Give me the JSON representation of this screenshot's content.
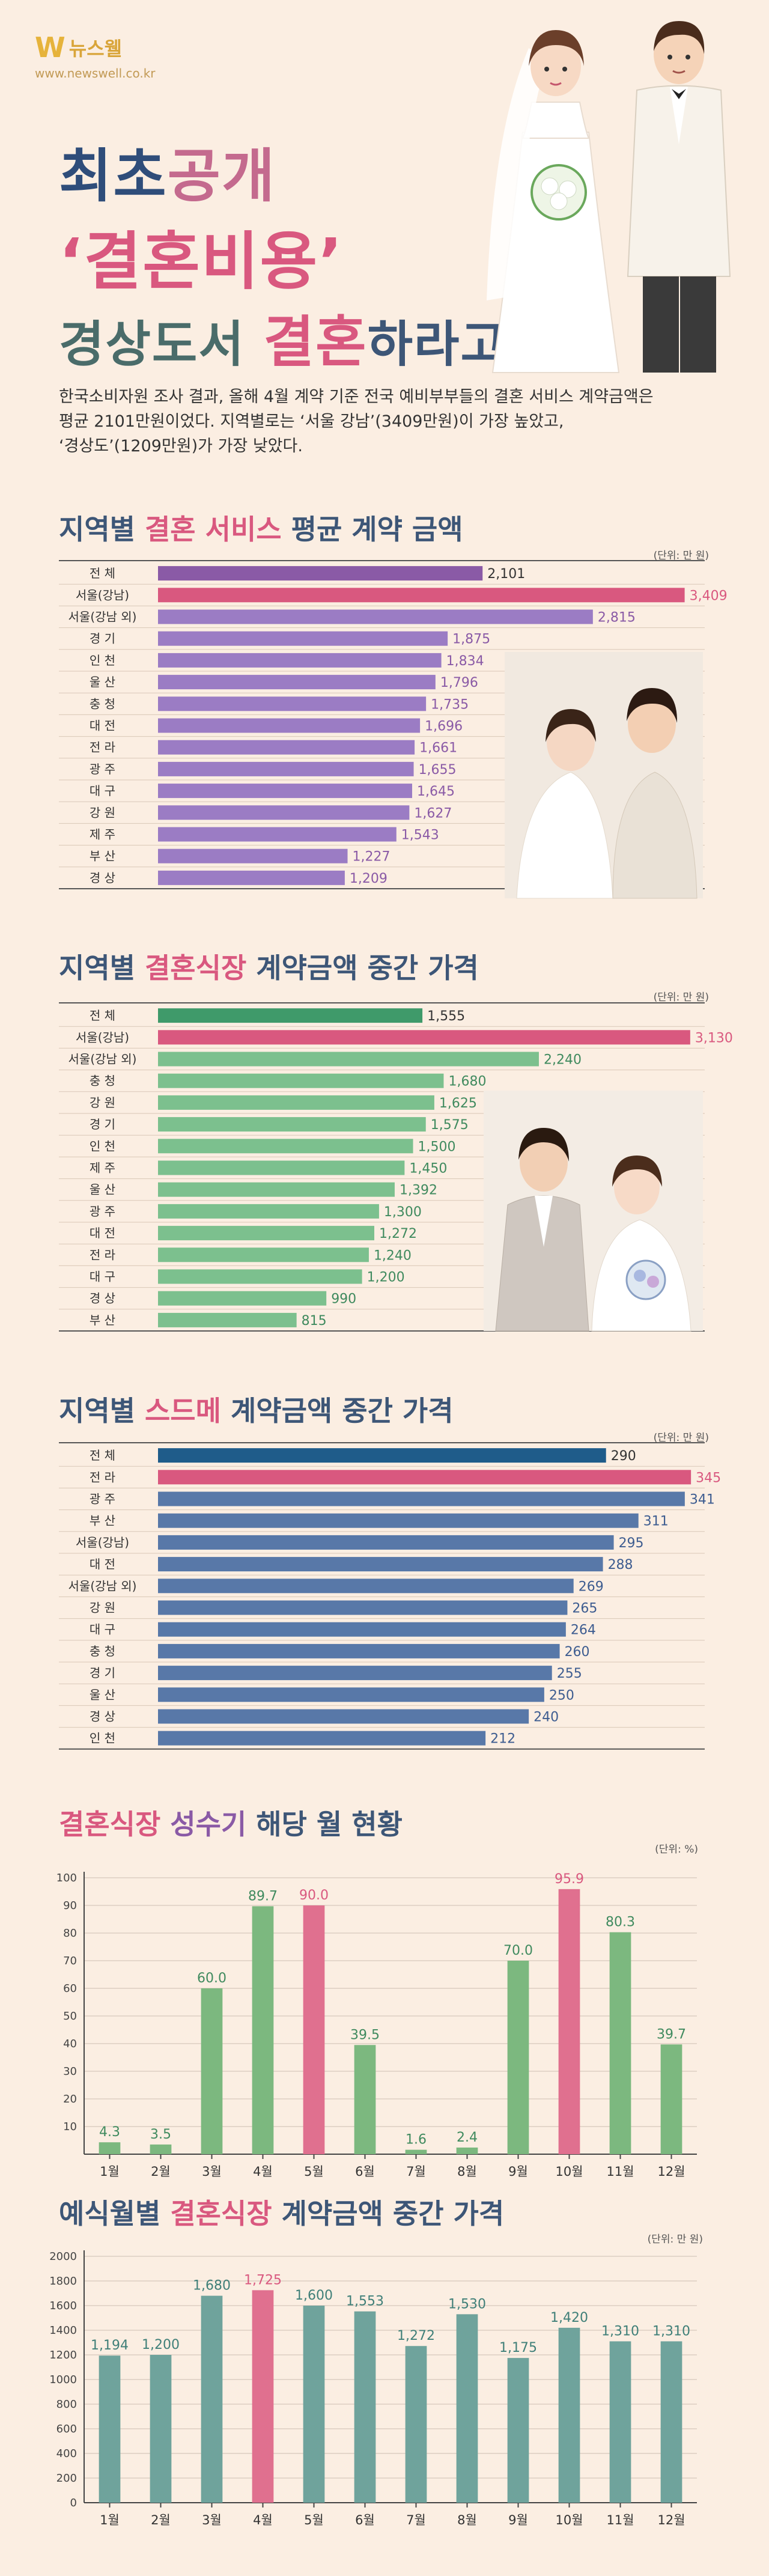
{
  "header": {
    "logo_mark": "W",
    "logo_name": "뉴스웰",
    "logo_url": "www.newswell.co.kr",
    "title_line1a": "최초",
    "title_line1b": "공개",
    "title_line2": "‘결혼비용’",
    "title_line3a": "경상도서 ",
    "title_line3b": "결혼",
    "title_line3c": "하라고",
    "title_line3d": "?",
    "intro_line1": "한국소비자원 조사 결과, 올해 4월 계약 기준 전국 예비부부들의 결혼 서비스 계약금액은",
    "intro_line2": "평균 2101만원이었다. 지역별로는 ‘서울 강남’(3409만원)이 가장 높았고,",
    "intro_line3": "‘경상도’(1209만원)가 가장 낮았다."
  },
  "colors": {
    "pink": "#d9587f",
    "purple": "#9b7cc4",
    "green": "#7cc08e",
    "blue": "#5878a8",
    "teal": "#6fa39c",
    "navy": "#1f5c8a",
    "title_blue": "#3d5677"
  },
  "chart_data": [
    {
      "type": "bar",
      "orientation": "horizontal",
      "title_parts": [
        "지역별 ",
        "결혼 서비스",
        " 평균 계약 금액"
      ],
      "unit": "(단위: 만 원)",
      "categories": [
        "전 체",
        "서울(강남)",
        "서울(강남 외)",
        "경 기",
        "인 천",
        "울 산",
        "충 청",
        "대 전",
        "전 라",
        "광 주",
        "대 구",
        "강 원",
        "제 주",
        "부 산",
        "경 상"
      ],
      "values": [
        2101,
        3409,
        2815,
        1875,
        1834,
        1796,
        1735,
        1696,
        1661,
        1655,
        1645,
        1627,
        1543,
        1227,
        1209
      ],
      "value_labels": [
        "2,101",
        "3,409",
        "2,815",
        "1,875",
        "1,834",
        "1,796",
        "1,735",
        "1,696",
        "1,661",
        "1,655",
        "1,645",
        "1,627",
        "1,543",
        "1,227",
        "1,209"
      ],
      "colors": [
        "#8a5aa6",
        "#d9587f",
        "#9b7cc4",
        "#9b7cc4",
        "#9b7cc4",
        "#9b7cc4",
        "#9b7cc4",
        "#9b7cc4",
        "#9b7cc4",
        "#9b7cc4",
        "#9b7cc4",
        "#9b7cc4",
        "#9b7cc4",
        "#9b7cc4",
        "#9b7cc4"
      ],
      "label_colors": [
        "#333",
        "#d9587f",
        "#8a5aa6",
        "#8a5aa6",
        "#8a5aa6",
        "#8a5aa6",
        "#8a5aa6",
        "#8a5aa6",
        "#8a5aa6",
        "#8a5aa6",
        "#8a5aa6",
        "#8a5aa6",
        "#8a5aa6",
        "#8a5aa6",
        "#8a5aa6"
      ],
      "xlim": [
        0,
        3500
      ]
    },
    {
      "type": "bar",
      "orientation": "horizontal",
      "title_parts": [
        "지역별 ",
        "결혼식장",
        " 계약금액 중간 가격"
      ],
      "unit": "(단위: 만 원)",
      "categories": [
        "전 체",
        "서울(강남)",
        "서울(강남 외)",
        "충 청",
        "강 원",
        "경 기",
        "인 천",
        "제 주",
        "울 산",
        "광 주",
        "대 전",
        "전 라",
        "대 구",
        "경 상",
        "부 산"
      ],
      "values": [
        1555,
        3130,
        2240,
        1680,
        1625,
        1575,
        1500,
        1450,
        1392,
        1300,
        1272,
        1240,
        1200,
        990,
        815
      ],
      "value_labels": [
        "1,555",
        "3,130",
        "2,240",
        "1,680",
        "1,625",
        "1,575",
        "1,500",
        "1,450",
        "1,392",
        "1,300",
        "1,272",
        "1,240",
        "1,200",
        "990",
        "815"
      ],
      "colors": [
        "#3f9a6a",
        "#d9587f",
        "#7cc08e",
        "#7cc08e",
        "#7cc08e",
        "#7cc08e",
        "#7cc08e",
        "#7cc08e",
        "#7cc08e",
        "#7cc08e",
        "#7cc08e",
        "#7cc08e",
        "#7cc08e",
        "#7cc08e",
        "#7cc08e"
      ],
      "label_colors": [
        "#333",
        "#d9587f",
        "#3f8a5e",
        "#3f8a5e",
        "#3f8a5e",
        "#3f8a5e",
        "#3f8a5e",
        "#3f8a5e",
        "#3f8a5e",
        "#3f8a5e",
        "#3f8a5e",
        "#3f8a5e",
        "#3f8a5e",
        "#3f8a5e",
        "#3f8a5e"
      ],
      "xlim": [
        0,
        3180
      ]
    },
    {
      "type": "bar",
      "orientation": "horizontal",
      "title_parts": [
        "지역별 ",
        "스드메",
        " 계약금액 중간 가격"
      ],
      "unit": "(단위: 만 원)",
      "categories": [
        "전 체",
        "전 라",
        "광 주",
        "부 산",
        "서울(강남)",
        "대 전",
        "서울(강남 외)",
        "강 원",
        "대 구",
        "충 청",
        "경 기",
        "울 산",
        "경 상",
        "인 천"
      ],
      "values": [
        290,
        345,
        341,
        311,
        295,
        288,
        269,
        265,
        264,
        260,
        255,
        250,
        240,
        212
      ],
      "value_labels": [
        "290",
        "345",
        "341",
        "311",
        "295",
        "288",
        "269",
        "265",
        "264",
        "260",
        "255",
        "250",
        "240",
        "212"
      ],
      "colors": [
        "#1f5c8a",
        "#d9587f",
        "#5878a8",
        "#5878a8",
        "#5878a8",
        "#5878a8",
        "#5878a8",
        "#5878a8",
        "#5878a8",
        "#5878a8",
        "#5878a8",
        "#5878a8",
        "#5878a8",
        "#5878a8"
      ],
      "label_colors": [
        "#333",
        "#d9587f",
        "#3d5c90",
        "#3d5c90",
        "#3d5c90",
        "#3d5c90",
        "#3d5c90",
        "#3d5c90",
        "#3d5c90",
        "#3d5c90",
        "#3d5c90",
        "#3d5c90",
        "#3d5c90",
        "#3d5c90"
      ],
      "xlim": [
        0,
        350
      ]
    },
    {
      "type": "bar",
      "orientation": "vertical",
      "title_parts": [
        "결혼식장",
        " 성수기 ",
        "해당 월 현황"
      ],
      "unit": "(단위: %)",
      "categories": [
        "1월",
        "2월",
        "3월",
        "4월",
        "5월",
        "6월",
        "7월",
        "8월",
        "9월",
        "10월",
        "11월",
        "12월"
      ],
      "values": [
        4.3,
        3.5,
        60.0,
        89.7,
        90.0,
        39.5,
        1.6,
        2.4,
        70.0,
        95.9,
        80.3,
        39.7
      ],
      "value_labels": [
        "4.3",
        "3.5",
        "60.0",
        "89.7",
        "90.0",
        "39.5",
        "1.6",
        "2.4",
        "70.0",
        "95.9",
        "80.3",
        "39.7"
      ],
      "colors": [
        "#7cb87f",
        "#7cb87f",
        "#7cb87f",
        "#7cb87f",
        "#e0708f",
        "#7cb87f",
        "#7cb87f",
        "#7cb87f",
        "#7cb87f",
        "#e0708f",
        "#7cb87f",
        "#7cb87f"
      ],
      "label_colors": [
        "#3f8a5e",
        "#3f8a5e",
        "#3f8a5e",
        "#3f8a5e",
        "#d9587f",
        "#3f8a5e",
        "#3f8a5e",
        "#3f8a5e",
        "#3f8a5e",
        "#d9587f",
        "#3f8a5e",
        "#3f8a5e"
      ],
      "yticks": [
        10,
        20,
        30,
        40,
        50,
        60,
        70,
        80,
        90,
        100
      ],
      "ylim": [
        0,
        100
      ]
    },
    {
      "type": "bar",
      "orientation": "vertical",
      "title_parts": [
        "예식월별 ",
        "결혼식장",
        " 계약금액 중간 가격"
      ],
      "unit": "(단위: 만 원)",
      "categories": [
        "1월",
        "2월",
        "3월",
        "4월",
        "5월",
        "6월",
        "7월",
        "8월",
        "9월",
        "10월",
        "11월",
        "12월"
      ],
      "values": [
        1194,
        1200,
        1680,
        1725,
        1600,
        1553,
        1272,
        1530,
        1175,
        1420,
        1310,
        1310
      ],
      "value_labels": [
        "1,194",
        "1,200",
        "1,680",
        "1,725",
        "1,600",
        "1,553",
        "1,272",
        "1,530",
        "1,175",
        "1,420",
        "1,310",
        "1,310"
      ],
      "colors": [
        "#6fa39c",
        "#6fa39c",
        "#6fa39c",
        "#e0708f",
        "#6fa39c",
        "#6fa39c",
        "#6fa39c",
        "#6fa39c",
        "#6fa39c",
        "#6fa39c",
        "#6fa39c",
        "#6fa39c"
      ],
      "label_colors": [
        "#3f7f78",
        "#3f7f78",
        "#3f7f78",
        "#d9587f",
        "#3f7f78",
        "#3f7f78",
        "#3f7f78",
        "#3f7f78",
        "#3f7f78",
        "#3f7f78",
        "#3f7f78",
        "#3f7f78"
      ],
      "yticks": [
        0,
        200,
        400,
        600,
        800,
        1000,
        1200,
        1400,
        1600,
        1800,
        2000
      ],
      "ylim": [
        0,
        2000
      ]
    }
  ]
}
